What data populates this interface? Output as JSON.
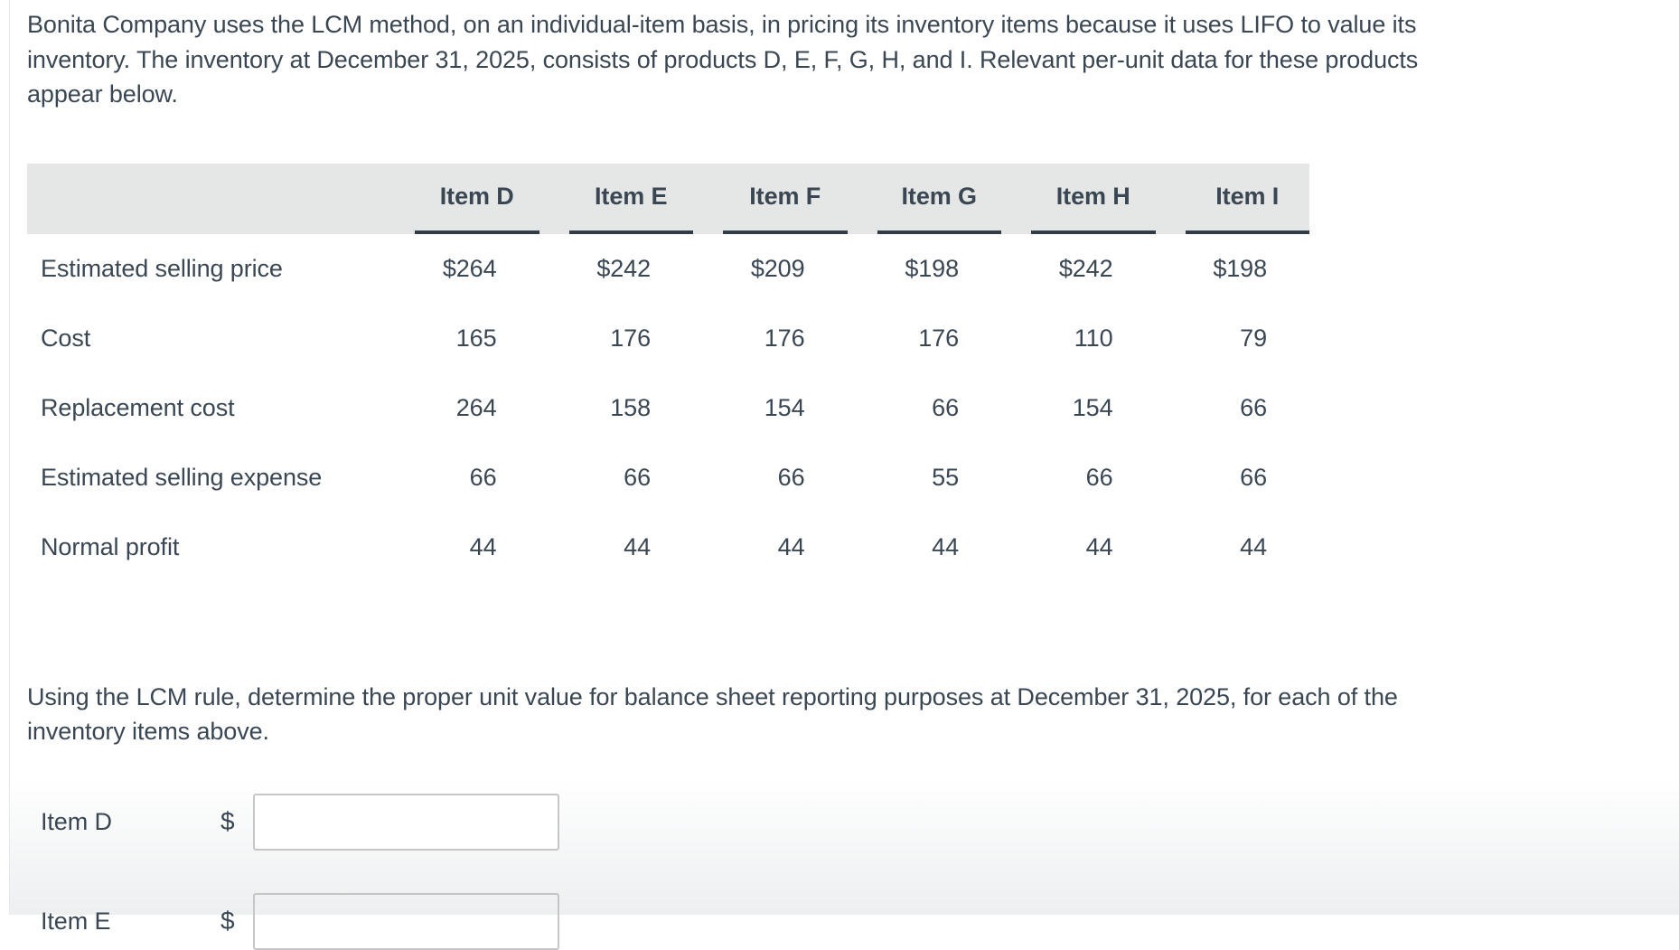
{
  "intro": "Bonita Company uses the LCM method, on an individual-item basis, in pricing its inventory items because it uses LIFO to value its inventory. The inventory at December 31, 2025, consists of products D, E, F, G, H, and I. Relevant per-unit data for these products appear below.",
  "table": {
    "columns": [
      "Item D",
      "Item E",
      "Item F",
      "Item G",
      "Item H",
      "Item I"
    ],
    "rows": [
      {
        "label": "Estimated selling price",
        "values": [
          "$264",
          "$242",
          "$209",
          "$198",
          "$242",
          "$198"
        ]
      },
      {
        "label": "Cost",
        "values": [
          "165",
          "176",
          "176",
          "176",
          "110",
          "79"
        ]
      },
      {
        "label": "Replacement cost",
        "values": [
          "264",
          "158",
          "154",
          "66",
          "154",
          "66"
        ]
      },
      {
        "label": "Estimated selling expense",
        "values": [
          "66",
          "66",
          "66",
          "55",
          "66",
          "66"
        ]
      },
      {
        "label": "Normal profit",
        "values": [
          "44",
          "44",
          "44",
          "44",
          "44",
          "44"
        ]
      }
    ]
  },
  "question": "Using the LCM rule, determine the proper unit value for balance sheet reporting purposes at December 31, 2025, for each of the inventory items above.",
  "answers": [
    {
      "label": "Item D",
      "currency": "$",
      "value": ""
    },
    {
      "label": "Item E",
      "currency": "$",
      "value": ""
    }
  ],
  "colors": {
    "text": "#3a4753",
    "header_band": "#e5e6e6",
    "header_underline": "#333c44",
    "input_border": "#c6c6c6",
    "page_background": "#ffffff"
  }
}
